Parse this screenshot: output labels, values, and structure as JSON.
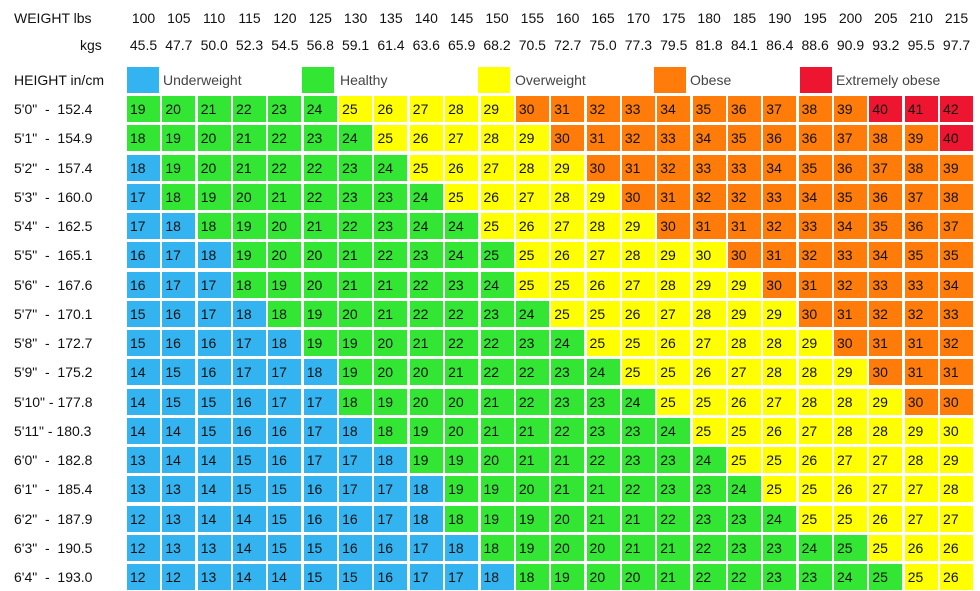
{
  "chart_data": {
    "type": "table",
    "weight_label": "WEIGHT lbs",
    "kgs_label": "kgs",
    "height_label": "HEIGHT in/cm",
    "lbs": [
      100,
      105,
      110,
      115,
      120,
      125,
      130,
      135,
      140,
      145,
      150,
      155,
      160,
      165,
      170,
      175,
      180,
      185,
      190,
      195,
      200,
      205,
      210,
      215
    ],
    "kgs": [
      "45.5",
      "47.7",
      "50.0",
      "52.3",
      "54.5",
      "56.8",
      "59.1",
      "61.4",
      "63.6",
      "65.9",
      "68.2",
      "70.5",
      "72.7",
      "75.0",
      "77.3",
      "79.5",
      "81.8",
      "84.1",
      "86.4",
      "88.6",
      "90.9",
      "93.2",
      "95.5",
      "97.7"
    ],
    "legend": [
      {
        "label": "Underweight",
        "color": "#33b4f0"
      },
      {
        "label": "Healthy",
        "color": "#33e633"
      },
      {
        "label": "Overweight",
        "color": "#ffff00"
      },
      {
        "label": "Obese",
        "color": "#ff7c0a"
      },
      {
        "label": "Extremely obese",
        "color": "#ee1530"
      }
    ],
    "rows": [
      {
        "height": "5'0\"  -  152.4",
        "values": [
          19,
          20,
          21,
          22,
          23,
          24,
          25,
          26,
          27,
          28,
          29,
          30,
          31,
          32,
          33,
          34,
          35,
          36,
          37,
          38,
          39,
          40,
          41,
          42
        ]
      },
      {
        "height": "5'1\"  -  154.9",
        "values": [
          18,
          19,
          20,
          21,
          22,
          23,
          24,
          25,
          26,
          27,
          28,
          29,
          30,
          31,
          32,
          33,
          34,
          35,
          36,
          36,
          37,
          38,
          39,
          40
        ]
      },
      {
        "height": "5'2\"  -  157.4",
        "values": [
          18,
          19,
          20,
          21,
          22,
          22,
          23,
          24,
          25,
          26,
          27,
          28,
          29,
          30,
          31,
          32,
          33,
          33,
          34,
          35,
          36,
          37,
          38,
          39
        ]
      },
      {
        "height": "5'3\"  -  160.0",
        "values": [
          17,
          18,
          19,
          20,
          21,
          22,
          23,
          23,
          24,
          25,
          26,
          27,
          28,
          29,
          30,
          31,
          32,
          32,
          33,
          34,
          35,
          36,
          37,
          38
        ]
      },
      {
        "height": "5'4\"  -  162.5",
        "values": [
          17,
          18,
          18,
          19,
          20,
          21,
          22,
          23,
          24,
          24,
          25,
          26,
          27,
          28,
          29,
          30,
          31,
          31,
          32,
          33,
          34,
          35,
          36,
          37
        ]
      },
      {
        "height": "5'5\"  -  165.1",
        "values": [
          16,
          17,
          18,
          19,
          20,
          20,
          21,
          22,
          23,
          24,
          25,
          25,
          26,
          27,
          28,
          29,
          30,
          30,
          31,
          32,
          33,
          34,
          35,
          35
        ]
      },
      {
        "height": "5'6\"  -  167.6",
        "values": [
          16,
          17,
          17,
          18,
          19,
          20,
          21,
          21,
          22,
          23,
          24,
          25,
          25,
          26,
          27,
          28,
          29,
          29,
          30,
          31,
          32,
          33,
          33,
          34
        ]
      },
      {
        "height": "5'7\"  -  170.1",
        "values": [
          15,
          16,
          17,
          18,
          18,
          19,
          20,
          21,
          22,
          22,
          23,
          24,
          25,
          25,
          26,
          27,
          28,
          29,
          29,
          30,
          31,
          32,
          32,
          33
        ]
      },
      {
        "height": "5'8\"  -  172.7",
        "values": [
          15,
          16,
          16,
          17,
          18,
          19,
          19,
          20,
          21,
          22,
          22,
          23,
          24,
          25,
          25,
          26,
          27,
          28,
          28,
          29,
          30,
          31,
          31,
          32
        ]
      },
      {
        "height": "5'9\"  -  175.2",
        "values": [
          14,
          15,
          16,
          17,
          17,
          18,
          19,
          20,
          20,
          21,
          22,
          22,
          23,
          24,
          25,
          25,
          26,
          27,
          28,
          28,
          29,
          30,
          31,
          31
        ]
      },
      {
        "height": "5'10\" - 177.8",
        "values": [
          14,
          15,
          15,
          16,
          17,
          17,
          18,
          19,
          20,
          20,
          21,
          22,
          23,
          23,
          24,
          25,
          25,
          26,
          27,
          28,
          28,
          29,
          30,
          30
        ]
      },
      {
        "height": "5'11\" - 180.3",
        "values": [
          14,
          14,
          15,
          16,
          16,
          17,
          18,
          18,
          19,
          20,
          21,
          21,
          22,
          23,
          23,
          24,
          25,
          25,
          26,
          27,
          28,
          28,
          29,
          30
        ]
      },
      {
        "height": "6'0\"  -  182.8",
        "values": [
          13,
          14,
          14,
          15,
          16,
          17,
          17,
          18,
          19,
          19,
          20,
          21,
          21,
          22,
          23,
          23,
          24,
          25,
          25,
          26,
          27,
          27,
          28,
          29
        ]
      },
      {
        "height": "6'1\"  -  185.4",
        "values": [
          13,
          13,
          14,
          15,
          15,
          16,
          17,
          17,
          18,
          19,
          19,
          20,
          21,
          21,
          22,
          23,
          23,
          24,
          25,
          25,
          26,
          27,
          27,
          28
        ]
      },
      {
        "height": "6'2\"  -  187.9",
        "values": [
          12,
          13,
          14,
          14,
          15,
          16,
          16,
          17,
          18,
          18,
          19,
          19,
          20,
          21,
          21,
          22,
          23,
          23,
          24,
          25,
          25,
          26,
          27,
          27
        ]
      },
      {
        "height": "6'3\"  -  190.5",
        "values": [
          12,
          13,
          13,
          14,
          15,
          15,
          16,
          16,
          17,
          18,
          18,
          19,
          20,
          20,
          21,
          21,
          22,
          23,
          23,
          24,
          25,
          25,
          26,
          26
        ]
      },
      {
        "height": "6'4\"  -  193.0",
        "values": [
          12,
          12,
          13,
          14,
          14,
          15,
          15,
          16,
          17,
          17,
          18,
          18,
          19,
          20,
          20,
          21,
          22,
          22,
          23,
          23,
          24,
          25,
          25,
          26
        ]
      }
    ]
  }
}
